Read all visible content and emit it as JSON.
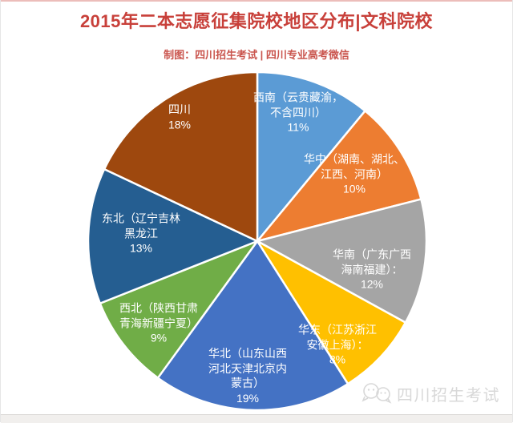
{
  "page": {
    "title": "2015年二本志愿征集院校地区分布|文科院校",
    "subtitle": "制图：四川招生考试 | 四川专业高考微信",
    "watermark_text": "四川招生考试",
    "colors": {
      "title_red": "#C8403A",
      "subtitle_red": "#CA554E",
      "slice_label_text": "#FFFFFF",
      "watermark_gray": "#D8D8D8"
    }
  },
  "chart_data": {
    "type": "pie",
    "title": "2015年二本志愿征集院校地区分布|文科院校",
    "start_angle_deg": 0,
    "direction": "clockwise",
    "legend": "none",
    "labels_position": "inside",
    "slices": [
      {
        "category": "西南（云贵藏渝，不含四川）",
        "value_pct": 11,
        "color": "#5B9BD5",
        "label_lines": [
          "西南（云贵藏渝，",
          "不含四川）",
          "11%"
        ]
      },
      {
        "category": "华中（湖南、湖北、江西、河南）",
        "value_pct": 10,
        "color": "#ED7D31",
        "label_lines": [
          "华中（湖南、湖北、",
          "江西、河南）",
          "10%"
        ]
      },
      {
        "category": "华南（广东广西海南福建）",
        "value_pct": 12,
        "color": "#A5A5A5",
        "label_lines": [
          "华南（广东广西",
          "海南福建）：",
          "12%"
        ]
      },
      {
        "category": "华东（江苏浙江安徽上海）",
        "value_pct": 8,
        "color": "#FFC000",
        "label_lines": [
          "华东（江苏浙江",
          "安徽上海）：",
          "8%"
        ]
      },
      {
        "category": "华北（山东山西河北天津北京内蒙古）",
        "value_pct": 19,
        "color": "#4472C4",
        "label_lines": [
          "华北（山东山西",
          "河北天津北京内",
          "蒙古）",
          "19%"
        ]
      },
      {
        "category": "西北（陕西甘肃青海新疆宁夏）",
        "value_pct": 9,
        "color": "#70AD47",
        "label_lines": [
          "西北（陕西甘肃",
          "青海新疆宁夏）",
          "9%"
        ]
      },
      {
        "category": "东北（辽宁吉林黑龙江）",
        "value_pct": 13,
        "color": "#255E91",
        "label_lines": [
          "东北（辽宁吉林",
          "黑龙江",
          "13%"
        ]
      },
      {
        "category": "四川",
        "value_pct": 18,
        "color": "#9E480E",
        "label_lines": [
          "四川",
          "18%"
        ]
      }
    ]
  }
}
